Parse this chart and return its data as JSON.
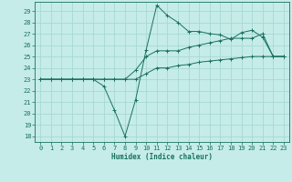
{
  "xlabel": "Humidex (Indice chaleur)",
  "bg_color": "#c5ece8",
  "grid_color": "#a8d8d2",
  "line_color": "#1a7060",
  "x_ticks": [
    0,
    1,
    2,
    3,
    4,
    5,
    6,
    7,
    8,
    9,
    10,
    11,
    12,
    13,
    14,
    15,
    16,
    17,
    18,
    19,
    20,
    21,
    22,
    23
  ],
  "y_ticks": [
    18,
    19,
    20,
    21,
    22,
    23,
    24,
    25,
    26,
    27,
    28,
    29
  ],
  "xlim": [
    -0.5,
    23.5
  ],
  "ylim": [
    17.5,
    29.8
  ],
  "line1_x": [
    0,
    1,
    2,
    3,
    4,
    5,
    6,
    7,
    8,
    9,
    10,
    11,
    12,
    13,
    14,
    15,
    16,
    17,
    18,
    19,
    20,
    21,
    22,
    23
  ],
  "line1_y": [
    23,
    23,
    23,
    23,
    23,
    23,
    22.4,
    20.3,
    18.0,
    21.2,
    25.6,
    29.5,
    28.6,
    28.0,
    27.2,
    27.2,
    27.0,
    26.9,
    26.5,
    27.1,
    27.3,
    26.7,
    25.0,
    25.0
  ],
  "line2_x": [
    0,
    1,
    2,
    3,
    4,
    5,
    6,
    7,
    8,
    9,
    10,
    11,
    12,
    13,
    14,
    15,
    16,
    17,
    18,
    19,
    20,
    21,
    22,
    23
  ],
  "line2_y": [
    23,
    23,
    23,
    23,
    23,
    23,
    23,
    23,
    23,
    23.8,
    25.0,
    25.5,
    25.5,
    25.5,
    25.8,
    26.0,
    26.2,
    26.4,
    26.6,
    26.6,
    26.6,
    27.0,
    25.0,
    25.0
  ],
  "line3_x": [
    0,
    1,
    2,
    3,
    4,
    5,
    6,
    7,
    8,
    9,
    10,
    11,
    12,
    13,
    14,
    15,
    16,
    17,
    18,
    19,
    20,
    21,
    22,
    23
  ],
  "line3_y": [
    23,
    23,
    23,
    23,
    23,
    23,
    23,
    23,
    23,
    23,
    23.5,
    24.0,
    24.0,
    24.2,
    24.3,
    24.5,
    24.6,
    24.7,
    24.8,
    24.9,
    25.0,
    25.0,
    25.0,
    25.0
  ],
  "tick_fontsize": 5.0,
  "xlabel_fontsize": 5.5,
  "lw": 0.7,
  "ms": 2.5
}
